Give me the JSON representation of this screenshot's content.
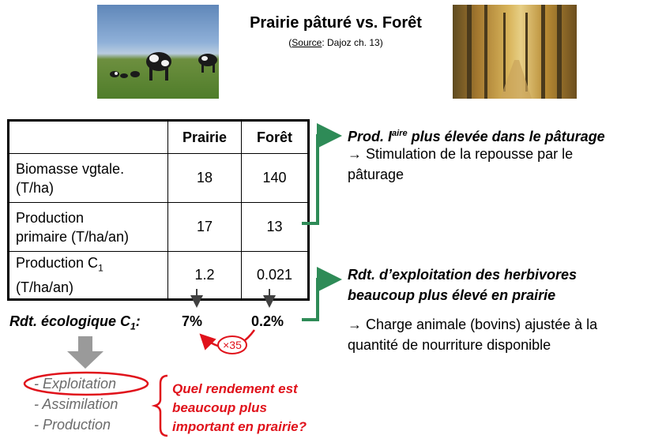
{
  "header": {
    "title": "Prairie pâturé vs. Forêt",
    "source_label": "Source",
    "source_rest": ": Dajoz ch. 13"
  },
  "table": {
    "headers": [
      "",
      "Prairie",
      "Forêt"
    ],
    "rows": [
      {
        "label_line1": "Biomasse vgtale.",
        "label_line2": "(T/ha)",
        "prairie": "18",
        "foret": "140"
      },
      {
        "label_line1": "Production",
        "label_line2": "primaire (T/ha/an)",
        "prairie": "17",
        "foret": "13"
      },
      {
        "label_line1": "Production C",
        "label_sub": "1",
        "label_line2": "(T/ha/an)",
        "prairie": "1.2",
        "foret": "0.021"
      }
    ]
  },
  "rendement": {
    "label": "Rdt. écologique C",
    "label_sub": "1",
    "label_colon": ":",
    "prairie": "7%",
    "foret": "0.2%",
    "ratio": "×35"
  },
  "note1": {
    "title_pre": "Prod. I",
    "title_sup": "aire",
    "title_post": " plus élevée dans le pâturage",
    "body_line1": "→ Stimulation de la repousse par le",
    "body_line2": "pâturage"
  },
  "note2": {
    "title_line1": "Rdt. d’exploitation des herbivores",
    "title_line2": "beaucoup plus élevé en prairie",
    "body_line1": "→ Charge animale (bovins) ajustée à la",
    "body_line2": "quantité de nourriture disponible"
  },
  "list": {
    "items": [
      "- Exploitation",
      "- Assimilation",
      "- Production"
    ]
  },
  "question": {
    "line1": "Quel rendement est",
    "line2": "beaucoup plus",
    "line3": "important en prairie?"
  },
  "colors": {
    "green_arrow": "#2e8b57",
    "red": "#e0121b",
    "gray": "#6b6b6b"
  }
}
